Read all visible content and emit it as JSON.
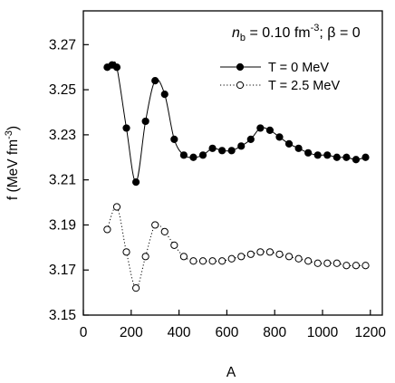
{
  "chart_data": {
    "type": "scatter",
    "xlabel": "A",
    "ylabel": "f (MeV fm",
    "ylabel_sup": "-3",
    "ylabel_close": ")",
    "xlim": [
      0,
      1250
    ],
    "ylim": [
      3.15,
      3.285
    ],
    "xticks": [
      0,
      200,
      400,
      600,
      800,
      1000,
      1200
    ],
    "xtick_labels": [
      "0",
      "200",
      "400",
      "600",
      "800",
      "1000",
      "1200"
    ],
    "yticks": [
      3.15,
      3.17,
      3.19,
      3.21,
      3.23,
      3.25,
      3.27
    ],
    "ytick_labels": [
      "3.15",
      "3.17",
      "3.19",
      "3.21",
      "3.23",
      "3.25",
      "3.27"
    ],
    "grid": false,
    "legend_position": "top-right",
    "annotation": {
      "n_symbol": "n",
      "n_subscript": "b",
      "value_text": " = 0.10 fm",
      "value_sup": "-3",
      "beta_text": "; β = 0"
    },
    "series": [
      {
        "name": "T = 0 MeV",
        "marker": "filled-circle",
        "line": "solid",
        "color": "#000000",
        "x": [
          100,
          120,
          140,
          180,
          220,
          260,
          300,
          340,
          380,
          420,
          460,
          500,
          540,
          580,
          620,
          660,
          700,
          740,
          780,
          820,
          860,
          900,
          940,
          980,
          1020,
          1060,
          1100,
          1140,
          1180
        ],
        "y": [
          3.26,
          3.261,
          3.26,
          3.233,
          3.209,
          3.236,
          3.254,
          3.248,
          3.228,
          3.221,
          3.22,
          3.221,
          3.224,
          3.223,
          3.223,
          3.225,
          3.228,
          3.233,
          3.232,
          3.229,
          3.226,
          3.224,
          3.222,
          3.221,
          3.221,
          3.22,
          3.22,
          3.219,
          3.22
        ]
      },
      {
        "name": "T = 2.5 MeV",
        "marker": "open-circle",
        "line": "dotted",
        "color": "#000000",
        "x": [
          100,
          140,
          180,
          220,
          260,
          300,
          340,
          380,
          420,
          460,
          500,
          540,
          580,
          620,
          660,
          700,
          740,
          780,
          820,
          860,
          900,
          940,
          980,
          1020,
          1060,
          1100,
          1140,
          1180
        ],
        "y": [
          3.188,
          3.198,
          3.178,
          3.162,
          3.176,
          3.19,
          3.187,
          3.181,
          3.176,
          3.174,
          3.174,
          3.174,
          3.174,
          3.175,
          3.176,
          3.177,
          3.178,
          3.178,
          3.177,
          3.176,
          3.175,
          3.174,
          3.173,
          3.173,
          3.173,
          3.172,
          3.172,
          3.172
        ]
      }
    ]
  }
}
